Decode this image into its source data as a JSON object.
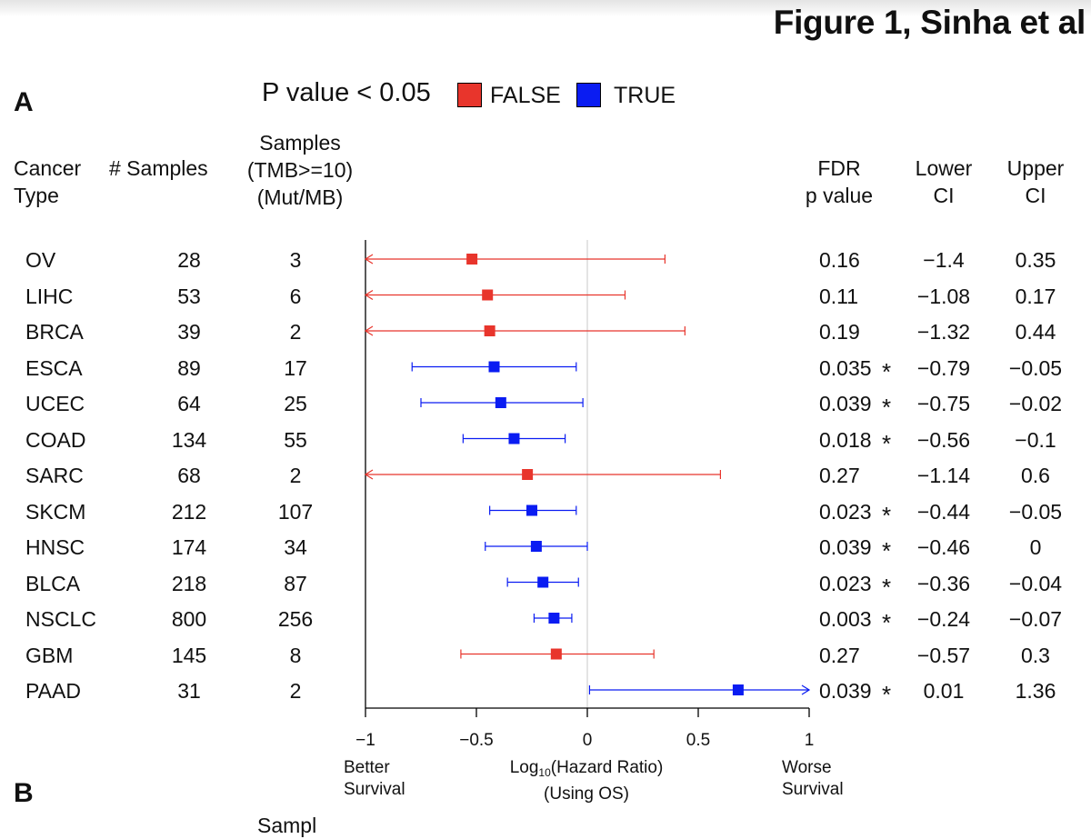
{
  "figure_title": "Figure 1, Sinha et al",
  "panel_a_label": "A",
  "panel_b_label": "B",
  "panel_b_partial_header": "Sampl",
  "legend": {
    "title": "P value < 0.05",
    "items": [
      {
        "label": "FALSE",
        "color": "#e8352c"
      },
      {
        "label": "TRUE",
        "color": "#0a1cf2"
      }
    ]
  },
  "headers": {
    "cancer_type": [
      "Cancer",
      "Type"
    ],
    "samples": "# Samples",
    "tmb": [
      "Samples",
      "(TMB>=10)",
      "(Mut/MB)"
    ],
    "fdr": [
      "FDR",
      "p value"
    ],
    "lower": [
      "Lower",
      "CI"
    ],
    "upper": [
      "Upper",
      "CI"
    ]
  },
  "rows": [
    {
      "cancer": "OV",
      "samples": "28",
      "tmb": "3",
      "fdr": "0.16",
      "sig": "",
      "lower": "−1.4",
      "upper": "0.35"
    },
    {
      "cancer": "LIHC",
      "samples": "53",
      "tmb": "6",
      "fdr": "0.11",
      "sig": "",
      "lower": "−1.08",
      "upper": "0.17"
    },
    {
      "cancer": "BRCA",
      "samples": "39",
      "tmb": "2",
      "fdr": "0.19",
      "sig": "",
      "lower": "−1.32",
      "upper": "0.44"
    },
    {
      "cancer": "ESCA",
      "samples": "89",
      "tmb": "17",
      "fdr": "0.035",
      "sig": "*",
      "lower": "−0.79",
      "upper": "−0.05"
    },
    {
      "cancer": "UCEC",
      "samples": "64",
      "tmb": "25",
      "fdr": "0.039",
      "sig": "*",
      "lower": "−0.75",
      "upper": "−0.02"
    },
    {
      "cancer": "COAD",
      "samples": "134",
      "tmb": "55",
      "fdr": "0.018",
      "sig": "*",
      "lower": "−0.56",
      "upper": "−0.1"
    },
    {
      "cancer": "SARC",
      "samples": "68",
      "tmb": "2",
      "fdr": "0.27",
      "sig": "",
      "lower": "−1.14",
      "upper": "0.6"
    },
    {
      "cancer": "SKCM",
      "samples": "212",
      "tmb": "107",
      "fdr": "0.023",
      "sig": "*",
      "lower": "−0.44",
      "upper": "−0.05"
    },
    {
      "cancer": "HNSC",
      "samples": "174",
      "tmb": "34",
      "fdr": "0.039",
      "sig": "*",
      "lower": "−0.46",
      "upper": "0"
    },
    {
      "cancer": "BLCA",
      "samples": "218",
      "tmb": "87",
      "fdr": "0.023",
      "sig": "*",
      "lower": "−0.36",
      "upper": "−0.04"
    },
    {
      "cancer": "NSCLC",
      "samples": "800",
      "tmb": "256",
      "fdr": "0.003",
      "sig": "*",
      "lower": "−0.24",
      "upper": "−0.07"
    },
    {
      "cancer": "GBM",
      "samples": "145",
      "tmb": "8",
      "fdr": "0.27",
      "sig": "",
      "lower": "−0.57",
      "upper": "0.3"
    },
    {
      "cancer": "PAAD",
      "samples": "31",
      "tmb": "2",
      "fdr": "0.039",
      "sig": "*",
      "lower": "0.01",
      "upper": "1.36"
    }
  ],
  "chart_data": {
    "type": "forest",
    "xlabel_main": "Log",
    "xlabel_sub": "10",
    "xlabel_rest": "(Hazard Ratio)",
    "xlabel_line2": "(Using OS)",
    "left_annotation": [
      "Better",
      "Survival"
    ],
    "right_annotation": [
      "Worse",
      "Survival"
    ],
    "xlim": [
      -1,
      1
    ],
    "ticks": [
      -1,
      -0.5,
      0,
      0.5,
      1
    ],
    "tick_labels": [
      "−1",
      "−0.5",
      "0",
      "0.5",
      "1"
    ],
    "reference_line": 0,
    "categories": [
      "OV",
      "LIHC",
      "BRCA",
      "ESCA",
      "UCEC",
      "COAD",
      "SARC",
      "SKCM",
      "HNSC",
      "BLCA",
      "NSCLC",
      "GBM",
      "PAAD"
    ],
    "estimates": [
      -0.52,
      -0.45,
      -0.44,
      -0.42,
      -0.39,
      -0.33,
      -0.27,
      -0.25,
      -0.23,
      -0.2,
      -0.15,
      -0.14,
      0.68
    ],
    "ci_lower": [
      -1.4,
      -1.08,
      -1.32,
      -0.79,
      -0.75,
      -0.56,
      -1.14,
      -0.44,
      -0.46,
      -0.36,
      -0.24,
      -0.57,
      0.01
    ],
    "ci_upper": [
      0.35,
      0.17,
      0.44,
      -0.05,
      -0.02,
      -0.1,
      0.6,
      -0.05,
      0,
      -0.04,
      -0.07,
      0.3,
      1.36
    ],
    "significant": [
      false,
      false,
      false,
      true,
      true,
      true,
      false,
      true,
      true,
      true,
      true,
      false,
      true
    ]
  }
}
